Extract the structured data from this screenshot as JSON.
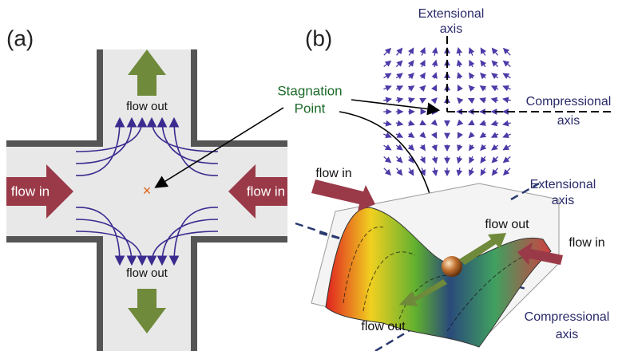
{
  "panel_a": {
    "label": "(a)",
    "flow_out_top": "flow out",
    "flow_out_bottom": "flow out",
    "flow_in_left": "flow in",
    "flow_in_right": "flow in"
  },
  "panel_b": {
    "label": "(b)",
    "stagnation_point": [
      "Stagnation",
      "Point"
    ],
    "field_extensional_axis": [
      "Extensional",
      "axis"
    ],
    "field_compressional_axis": [
      "Compressional",
      "axis"
    ],
    "surface_flow_in_left": "flow in",
    "surface_flow_in_right": "flow in",
    "surface_flow_out_right": "flow out",
    "surface_flow_out_left": "flow out",
    "surface_extensional_axis": [
      "Extensional",
      "axis"
    ],
    "surface_compressional_axis": [
      "Compressional",
      "axis"
    ]
  }
}
